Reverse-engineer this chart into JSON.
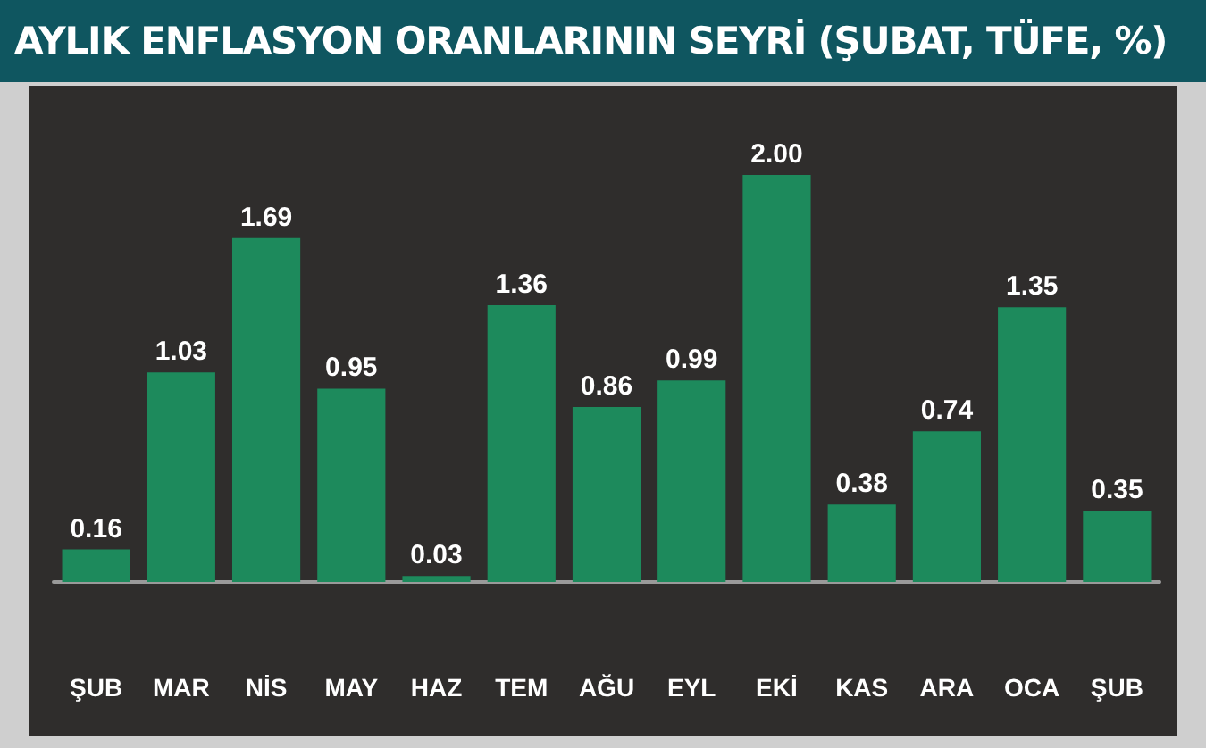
{
  "chart_data": {
    "type": "bar",
    "title": "AYLIK ENFLASYON ORANLARININ SEYRİ (ŞUBAT, TÜFE, %)",
    "categories": [
      "ŞUB",
      "MAR",
      "NİS",
      "MAY",
      "HAZ",
      "TEM",
      "AĞU",
      "EYL",
      "EKİ",
      "KAS",
      "ARA",
      "OCA",
      "ŞUB"
    ],
    "values": [
      0.16,
      1.03,
      1.69,
      0.95,
      0.03,
      1.36,
      0.86,
      0.99,
      2.0,
      0.38,
      0.74,
      1.35,
      0.35
    ],
    "value_labels": [
      "0.16",
      "1.03",
      "1.69",
      "0.95",
      "0.03",
      "1.36",
      "0.86",
      "0.99",
      "2.00",
      "0.38",
      "0.74",
      "1.35",
      "0.35"
    ],
    "color": "#1d8a5c"
  }
}
